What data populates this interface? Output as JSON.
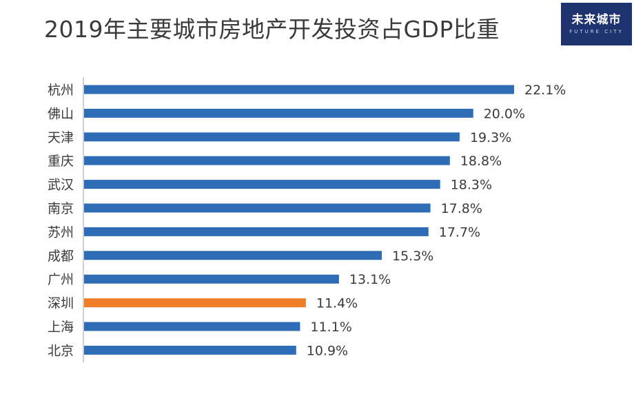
{
  "title": "2019年主要城市房地产开发投资占GDP比重",
  "logo": {
    "main": "未来城市",
    "sub": "FUTURE CITY"
  },
  "colors": {
    "bar": "#2e6db5",
    "highlight": "#f07f2c",
    "axis": "#bfbfbf"
  },
  "chart_data": {
    "type": "bar",
    "orientation": "horizontal",
    "title": "2019年主要城市房地产开发投资占GDP比重",
    "categories": [
      "杭州",
      "佛山",
      "天津",
      "重庆",
      "武汉",
      "南京",
      "苏州",
      "成都",
      "广州",
      "深圳",
      "上海",
      "北京"
    ],
    "values": [
      22.1,
      20.0,
      19.3,
      18.8,
      18.3,
      17.8,
      17.7,
      15.3,
      13.1,
      11.4,
      11.1,
      10.9
    ],
    "value_labels": [
      "22.1%",
      "20.0%",
      "19.3%",
      "18.8%",
      "18.3%",
      "17.8%",
      "17.7%",
      "15.3%",
      "13.1%",
      "11.4%",
      "11.1%",
      "10.9%"
    ],
    "highlight_category": "深圳",
    "unit": "%",
    "xlim": [
      0,
      22.1
    ],
    "xlabel": "",
    "ylabel": "",
    "grid": false,
    "legend": "none"
  }
}
